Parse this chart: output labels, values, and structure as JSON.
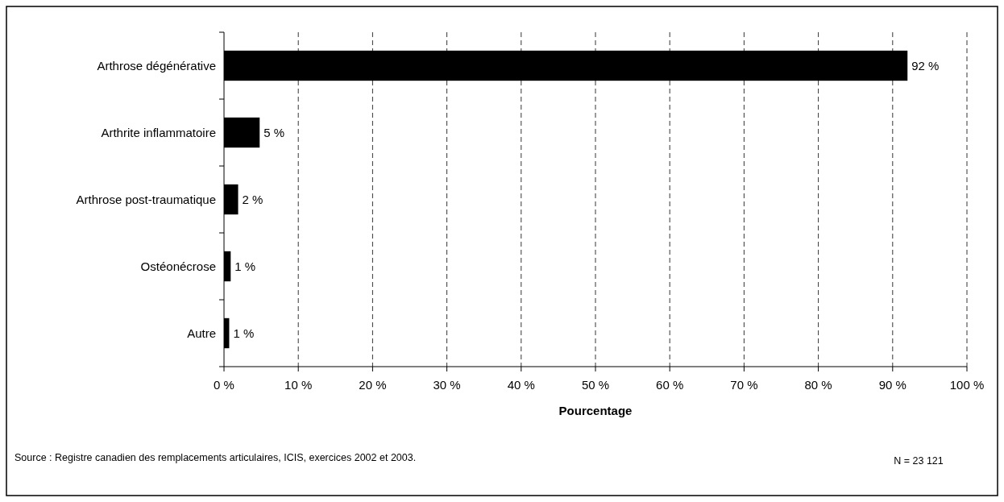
{
  "chart_data": {
    "type": "bar",
    "orientation": "horizontal",
    "categories": [
      "Arthrose dégénérative",
      "Arthrite inflammatoire",
      "Arthrose post-traumatique",
      "Ostéonécrose",
      "Autre"
    ],
    "values": [
      92,
      4.8,
      1.9,
      0.9,
      0.7
    ],
    "value_labels": [
      "92 %",
      "5 %",
      "2 %",
      "1 %",
      "1 %"
    ],
    "color": "#000000",
    "xlabel": "Pourcentage",
    "xlim": [
      0,
      100
    ],
    "xticks": [
      {
        "value": 0,
        "label": "0 %"
      },
      {
        "value": 10,
        "label": "10 %"
      },
      {
        "value": 20,
        "label": "20 %"
      },
      {
        "value": 30,
        "label": "30 %"
      },
      {
        "value": 40,
        "label": "40 %"
      },
      {
        "value": 50,
        "label": "50 %"
      },
      {
        "value": 60,
        "label": "60 %"
      },
      {
        "value": 70,
        "label": "70 %"
      },
      {
        "value": 80,
        "label": "80 %"
      },
      {
        "value": 90,
        "label": "90 %"
      },
      {
        "value": 100,
        "label": "100 %"
      }
    ],
    "grid": "x",
    "line_style": "dashed",
    "annotations": [
      "Source : Registre canadien des remplacements articulaires, ICIS, exercices 2002 et 2003.",
      "N = 23 121"
    ]
  }
}
